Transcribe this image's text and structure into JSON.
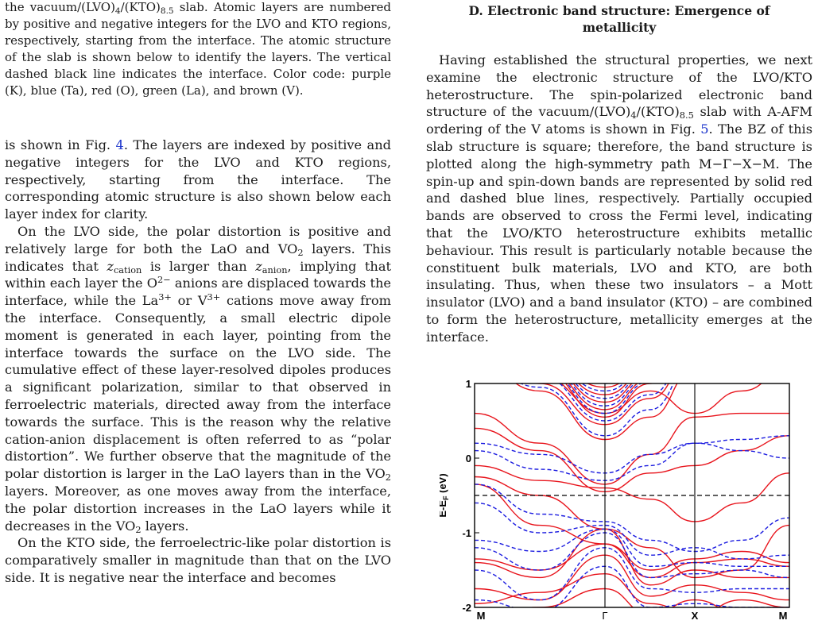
{
  "left_column": {
    "caption_html": "the vacuum/(LVO)<sub>4</sub>/(KTO)<sub>8.5</sub> slab. Atomic layers are numbered by positive and negative integers for the LVO and KTO regions, respectively, starting from the interface. The atomic structure of the slab is shown below to identify the layers. The vertical dashed black line indicates the interface. Color code: purple (K), blue (Ta), red (O), green (La), and brown (V).",
    "para1_html": "is shown in Fig. <span class=\"link\">4</span>. The layers are indexed by positive and negative integers for the LVO and KTO regions, respectively, starting from the interface. The corresponding atomic structure is also shown below each layer index for clarity.",
    "para2_html": "On the LVO side, the polar distortion is positive and relatively large for both the LaO and VO<sub>2</sub> layers. This indicates that <i>z</i><sub>cation</sub> is larger than <i>z</i><sub>anion</sub>, implying that within each layer the O<sup>2&minus;</sup> anions are displaced towards the interface, while the La<sup>3+</sup> or V<sup>3+</sup> cations move away from the interface. Consequently, a small electric dipole moment is generated in each layer, pointing from the interface towards the surface on the LVO side. The cumulative effect of these layer-resolved dipoles produces a significant polarization, similar to that observed in ferroelectric materials, directed away from the interface towards the surface. This is the reason why the relative cation-anion displacement is often referred to as &ldquo;polar distortion&rdquo;. We further observe that the magnitude of the polar distortion is larger in the LaO layers than in the VO<sub>2</sub> layers. Moreover, as one moves away from the interface, the polar distortion increases in the LaO layers while it decreases in the VO<sub>2</sub> layers.",
    "para3_html": "On the KTO side, the ferroelectric-like polar distortion is comparatively smaller in magnitude than that on the LVO side. It is negative near the interface and becomes"
  },
  "right_column": {
    "section_heading": "D.    Electronic band structure: Emergence of metallicity",
    "para_html": "Having established the structural properties, we next examine the electronic structure of the LVO/KTO heterostructure. The spin-polarized electronic band structure of the vacuum/(LVO)<sub>4</sub>/(KTO)<sub>8.5</sub> slab with A-AFM ordering of the V atoms is shown in Fig. <span class=\"link\">5</span>. The BZ of this slab structure is square; therefore, the band structure is plotted along the high-symmetry path M&minus;&Gamma;&minus;X&minus;M. The spin-up and spin-down bands are represented by solid red and dashed blue lines, respectively. Partially occupied bands are observed to cross the Fermi level, indicating that the LVO/KTO heterostructure exhibits metallic behaviour. This result is particularly notable because the constituent bulk materials, LVO and KTO, are both insulating. Thus, when these two insulators &ndash; a Mott insulator (LVO) and a band insulator (KTO) &ndash; are combined to form the heterostructure, metallicity emerges at the interface."
  },
  "figure": {
    "ylabel": "E-E",
    "ylabel_sub": "F",
    "ylabel_unit": " (eV)",
    "yticks": [
      "1",
      "0",
      "-1",
      "-2"
    ],
    "kpoint_labels": [
      "M",
      "Γ",
      "X",
      "M"
    ],
    "colors": {
      "spin_up": "#e8141c",
      "spin_down": "#1c1ce0",
      "axis": "#000000"
    }
  }
}
